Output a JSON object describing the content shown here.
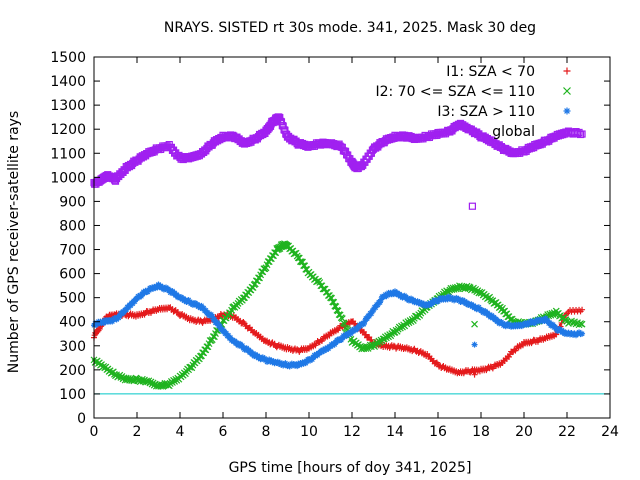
{
  "chart_data": {
    "type": "scatter",
    "title": "NRAYS. SISTED rt 30s mode. 341, 2025. Mask 30 deg",
    "xlabel": "GPS time [hours of doy 341, 2025]",
    "ylabel": "Number of GPS receiver-satellite rays",
    "xlim": [
      0,
      24
    ],
    "ylim": [
      0,
      1500
    ],
    "xticks": [
      0,
      2,
      4,
      6,
      8,
      10,
      12,
      14,
      16,
      18,
      20,
      22,
      24
    ],
    "yticks": [
      0,
      100,
      200,
      300,
      400,
      500,
      600,
      700,
      800,
      900,
      1000,
      1100,
      1200,
      1300,
      1400,
      1500
    ],
    "grid": false,
    "legend_position": "top-right",
    "reference_line": {
      "y": 100,
      "color": "#00c8c8"
    },
    "series": [
      {
        "name": "I1: SZA < 70",
        "marker": "+",
        "color": "#e41a1c",
        "x": [
          0,
          0.3,
          0.6,
          1.0,
          1.5,
          2.0,
          2.5,
          3.0,
          3.5,
          4.0,
          4.5,
          5.0,
          5.5,
          6.0,
          6.5,
          7.0,
          7.5,
          8.0,
          8.5,
          9.0,
          9.5,
          10.0,
          10.5,
          11.0,
          11.5,
          12.0,
          12.5,
          13.0,
          13.5,
          14.0,
          14.5,
          15.0,
          15.5,
          16.0,
          16.5,
          17.0,
          17.5,
          18.0,
          18.5,
          19.0,
          19.5,
          20.0,
          20.5,
          21.0,
          21.5,
          22.0,
          22.7
        ],
        "y": [
          340,
          380,
          420,
          430,
          430,
          425,
          440,
          450,
          460,
          430,
          410,
          400,
          410,
          430,
          420,
          390,
          350,
          320,
          300,
          290,
          280,
          290,
          320,
          350,
          380,
          400,
          360,
          310,
          300,
          295,
          290,
          280,
          260,
          220,
          200,
          190,
          195,
          200,
          210,
          230,
          280,
          310,
          320,
          330,
          350,
          440,
          450
        ]
      },
      {
        "name": "I2: 70 <= SZA <= 110",
        "marker": "x",
        "color": "#1fb31f",
        "x": [
          0,
          0.5,
          1.0,
          1.5,
          2.0,
          2.5,
          3.0,
          3.5,
          4.0,
          4.5,
          5.0,
          5.5,
          6.0,
          6.5,
          7.0,
          7.5,
          8.0,
          8.5,
          8.8,
          9.0,
          9.5,
          10.0,
          10.5,
          11.0,
          11.5,
          12.0,
          12.5,
          13.0,
          13.5,
          14.0,
          14.5,
          15.0,
          15.5,
          16.0,
          16.5,
          17.0,
          17.5,
          18.0,
          18.5,
          19.0,
          19.5,
          20.0,
          20.5,
          21.0,
          21.5,
          22.0,
          22.7
        ],
        "y": [
          240,
          210,
          180,
          160,
          160,
          150,
          135,
          140,
          170,
          210,
          260,
          330,
          400,
          460,
          500,
          560,
          630,
          700,
          720,
          715,
          670,
          600,
          560,
          500,
          420,
          320,
          290,
          300,
          330,
          360,
          390,
          420,
          460,
          500,
          530,
          545,
          540,
          520,
          490,
          450,
          400,
          390,
          400,
          420,
          440,
          400,
          390
        ]
      },
      {
        "name": "I3: SZA > 110",
        "marker": "*",
        "color": "#1f78e6",
        "x": [
          0,
          0.5,
          1.0,
          1.5,
          2.0,
          2.5,
          3.0,
          3.5,
          4.0,
          4.5,
          5.0,
          5.5,
          6.0,
          6.5,
          7.0,
          7.5,
          8.0,
          8.5,
          9.0,
          9.5,
          10.0,
          10.5,
          11.0,
          11.5,
          12.0,
          12.5,
          13.0,
          13.5,
          14.0,
          14.5,
          15.0,
          15.5,
          16.0,
          16.5,
          17.0,
          17.5,
          18.0,
          18.5,
          19.0,
          19.5,
          20.0,
          20.5,
          21.0,
          21.5,
          22.0,
          22.7
        ],
        "y": [
          390,
          400,
          410,
          450,
          500,
          530,
          550,
          530,
          500,
          480,
          460,
          420,
          360,
          320,
          290,
          260,
          240,
          230,
          220,
          220,
          240,
          270,
          300,
          330,
          360,
          390,
          450,
          510,
          520,
          500,
          480,
          470,
          490,
          500,
          490,
          470,
          450,
          420,
          390,
          380,
          390,
          400,
          410,
          370,
          350,
          350
        ]
      },
      {
        "name": "global",
        "marker": "square",
        "color": "#a020f0",
        "x": [
          0,
          0.3,
          0.6,
          1.0,
          1.5,
          2.0,
          2.5,
          3.0,
          3.5,
          4.0,
          4.5,
          5.0,
          5.5,
          6.0,
          6.5,
          7.0,
          7.5,
          8.0,
          8.3,
          8.6,
          9.0,
          9.5,
          10.0,
          10.5,
          11.0,
          11.5,
          12.0,
          12.2,
          12.5,
          13.0,
          13.5,
          14.0,
          14.5,
          15.0,
          15.5,
          16.0,
          16.5,
          17.0,
          17.5,
          18.0,
          18.5,
          19.0,
          19.5,
          20.0,
          20.5,
          21.0,
          21.5,
          22.0,
          22.7
        ],
        "y": [
          975,
          985,
          1010,
          990,
          1040,
          1070,
          1100,
          1120,
          1130,
          1080,
          1080,
          1100,
          1140,
          1170,
          1170,
          1140,
          1160,
          1190,
          1230,
          1250,
          1170,
          1140,
          1130,
          1140,
          1140,
          1130,
          1060,
          1040,
          1050,
          1120,
          1150,
          1170,
          1170,
          1160,
          1170,
          1180,
          1190,
          1220,
          1200,
          1170,
          1150,
          1120,
          1100,
          1110,
          1130,
          1150,
          1170,
          1190,
          1180
        ]
      }
    ],
    "outliers": [
      {
        "series": "global",
        "x": 17.6,
        "y": 880
      },
      {
        "series": "I2: 70 <= SZA <= 110",
        "x": 17.7,
        "y": 390
      },
      {
        "series": "I3: SZA > 110",
        "x": 17.7,
        "y": 305
      },
      {
        "series": "I1: SZA < 70",
        "x": 17.7,
        "y": 180
      }
    ]
  }
}
